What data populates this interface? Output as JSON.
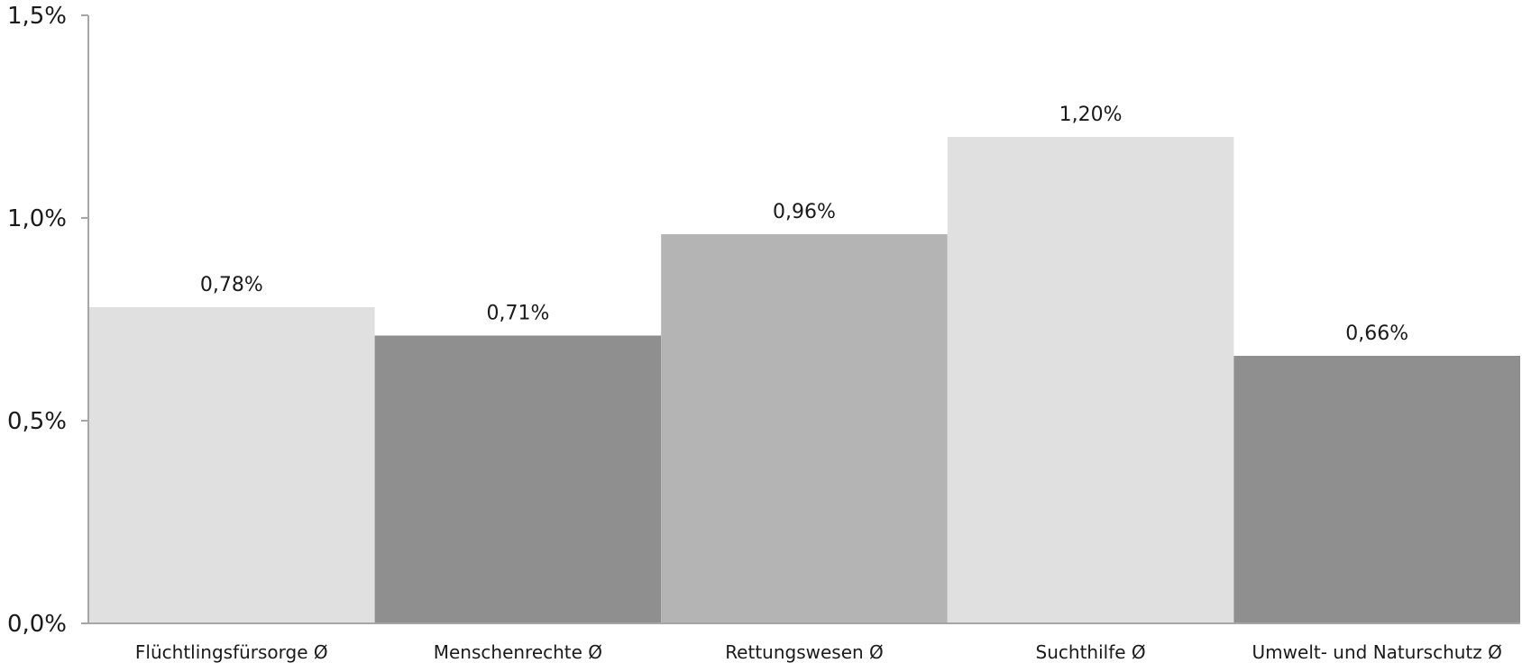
{
  "chart_data": {
    "type": "bar",
    "title": "",
    "xlabel": "",
    "ylabel": "",
    "categories": [
      "Flüchtlingsfürsorge Ø",
      "Menschenrechte Ø",
      "Rettungswesen Ø",
      "Suchthilfe Ø",
      "Umwelt- und Naturschutz Ø"
    ],
    "values": [
      0.78,
      0.71,
      0.96,
      1.2,
      0.66
    ],
    "data_labels": [
      "0,78%",
      "0,71%",
      "0,96%",
      "1,20%",
      "0,66%"
    ],
    "bar_colors": [
      "#e0e0e0",
      "#8f8f8f",
      "#b4b4b4",
      "#e0e0e0",
      "#8f8f8f"
    ],
    "ylim": [
      0,
      1.5
    ],
    "y_ticks": [
      0,
      0.5,
      1.0,
      1.5
    ],
    "y_tick_labels": [
      "0,0%",
      "0,5%",
      "1,0%",
      "1,5%"
    ],
    "grid": false,
    "legend": "none"
  }
}
